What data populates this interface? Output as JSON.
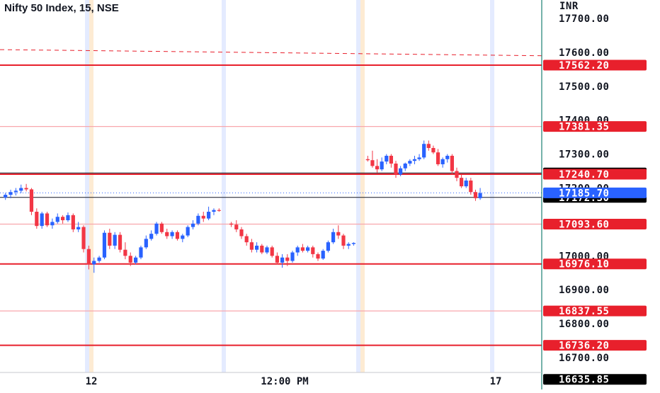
{
  "header": {
    "title": "Nifty 50 Index, 15, NSE"
  },
  "axis": {
    "currency": "INR"
  },
  "colors": {
    "up": "#2962ff",
    "down": "#f23645",
    "level_strong": "#e8202c",
    "level_light": "#f8a7ad",
    "dashed": "#e8202c",
    "session": "#dde6ff",
    "session_alt": "#fde6c8",
    "black_badge": "#000000",
    "blue_badge": "#2962ff",
    "axis_border": "#1a7f72",
    "text": "#131722"
  },
  "chart_data": {
    "type": "candlestick",
    "title": "Nifty 50 Index, 15, NSE",
    "ylabel": "INR",
    "ylim": [
      16610,
      17760
    ],
    "y_ticks": [
      "17700.00",
      "17600.00",
      "17500.00",
      "17400.00",
      "17300.00",
      "17200.00",
      "17000.00",
      "16900.00",
      "16800.00",
      "16700.00"
    ],
    "x_ticks": [
      "12",
      "12:00 PM",
      "17"
    ],
    "levels": [
      {
        "price": 17562.2,
        "label": "17562.20",
        "style": "strong",
        "badge": "red"
      },
      {
        "price": 17381.35,
        "label": "17381.35",
        "style": "light",
        "badge": "red"
      },
      {
        "price": 17244.25,
        "label": "17244.25",
        "style": "black",
        "badge": "black"
      },
      {
        "price": 17240.7,
        "label": "17240.70",
        "style": "strong",
        "badge": "red"
      },
      {
        "price": 17172.3,
        "label": "17172.30",
        "style": "black",
        "badge": "black"
      },
      {
        "price": 17093.6,
        "label": "17093.60",
        "style": "light",
        "badge": "red"
      },
      {
        "price": 16976.1,
        "label": "16976.10",
        "style": "strong",
        "badge": "red"
      },
      {
        "price": 16837.55,
        "label": "16837.55",
        "style": "light",
        "badge": "red"
      },
      {
        "price": 16736.2,
        "label": "16736.20",
        "style": "strong",
        "badge": "red"
      },
      {
        "price": 16635.85,
        "label": "16635.85",
        "style": "none",
        "badge": "black"
      }
    ],
    "last_price": {
      "price": 17185.7,
      "label": "17185.70"
    },
    "dashed_trend": {
      "from": 17608,
      "to": 17590
    },
    "candles": [
      [
        17172,
        17185,
        17165,
        17180
      ],
      [
        17180,
        17195,
        17170,
        17188
      ],
      [
        17188,
        17200,
        17178,
        17192
      ],
      [
        17192,
        17210,
        17185,
        17200
      ],
      [
        17200,
        17212,
        17190,
        17196
      ],
      [
        17196,
        17200,
        17120,
        17130
      ],
      [
        17130,
        17140,
        17080,
        17088
      ],
      [
        17088,
        17130,
        17080,
        17125
      ],
      [
        17125,
        17130,
        17085,
        17090
      ],
      [
        17090,
        17110,
        17080,
        17100
      ],
      [
        17100,
        17125,
        17095,
        17115
      ],
      [
        17115,
        17120,
        17095,
        17105
      ],
      [
        17105,
        17128,
        17100,
        17120
      ],
      [
        17120,
        17125,
        17070,
        17078
      ],
      [
        17078,
        17100,
        17070,
        17085
      ],
      [
        17085,
        17090,
        17010,
        17020
      ],
      [
        17020,
        17030,
        16960,
        16975
      ],
      [
        16975,
        16995,
        16950,
        16985
      ],
      [
        16985,
        17000,
        16980,
        16995
      ],
      [
        16995,
        17075,
        16990,
        17068
      ],
      [
        17068,
        17080,
        17020,
        17030
      ],
      [
        17030,
        17070,
        17020,
        17062
      ],
      [
        17062,
        17070,
        17010,
        17018
      ],
      [
        17018,
        17040,
        16990,
        17000
      ],
      [
        17000,
        17010,
        16970,
        16980
      ],
      [
        16980,
        17000,
        16975,
        16995
      ],
      [
        16995,
        17030,
        16990,
        17025
      ],
      [
        17025,
        17060,
        17020,
        17050
      ],
      [
        17050,
        17075,
        17045,
        17065
      ],
      [
        17065,
        17100,
        17060,
        17095
      ],
      [
        17095,
        17100,
        17065,
        17070
      ],
      [
        17070,
        17080,
        17050,
        17058
      ],
      [
        17058,
        17075,
        17050,
        17070
      ],
      [
        17070,
        17075,
        17045,
        17050
      ],
      [
        17050,
        17065,
        17040,
        17060
      ],
      [
        17060,
        17090,
        17055,
        17085
      ],
      [
        17085,
        17105,
        17078,
        17095
      ],
      [
        17095,
        17125,
        17090,
        17118
      ],
      [
        17118,
        17130,
        17100,
        17110
      ],
      [
        17110,
        17145,
        17105,
        17130
      ],
      [
        17130,
        17140,
        17120,
        17135
      ],
      [
        17135,
        17140,
        17130,
        17133
      ],
      [
        17095,
        17100,
        17085,
        17092
      ],
      [
        17092,
        17105,
        17070,
        17078
      ],
      [
        17078,
        17085,
        17050,
        17058
      ],
      [
        17058,
        17065,
        17030,
        17040
      ],
      [
        17040,
        17050,
        17010,
        17018
      ],
      [
        17018,
        17040,
        17010,
        17030
      ],
      [
        17030,
        17035,
        17005,
        17010
      ],
      [
        17010,
        17030,
        17005,
        17025
      ],
      [
        17025,
        17030,
        16995,
        17000
      ],
      [
        17000,
        17010,
        16975,
        16980
      ],
      [
        16980,
        17005,
        16965,
        16995
      ],
      [
        16995,
        17005,
        16970,
        16985
      ],
      [
        16985,
        17015,
        16980,
        17010
      ],
      [
        17010,
        17030,
        17000,
        17025
      ],
      [
        17025,
        17035,
        17010,
        17015
      ],
      [
        17015,
        17030,
        17010,
        17025
      ],
      [
        17025,
        17030,
        16995,
        17005
      ],
      [
        17005,
        17010,
        16985,
        16992
      ],
      [
        16992,
        17020,
        16988,
        17015
      ],
      [
        17015,
        17045,
        17010,
        17040
      ],
      [
        17040,
        17080,
        17035,
        17070
      ],
      [
        17070,
        17090,
        17050,
        17060
      ],
      [
        17060,
        17065,
        17020,
        17030
      ],
      [
        17030,
        17040,
        17020,
        17035
      ],
      [
        17035,
        17040,
        17030,
        17038
      ],
      [
        17285,
        17295,
        17278,
        17282
      ],
      [
        17282,
        17310,
        17260,
        17265
      ],
      [
        17265,
        17285,
        17245,
        17255
      ],
      [
        17255,
        17290,
        17250,
        17278
      ],
      [
        17278,
        17300,
        17270,
        17295
      ],
      [
        17295,
        17300,
        17260,
        17272
      ],
      [
        17272,
        17280,
        17230,
        17240
      ],
      [
        17240,
        17265,
        17235,
        17258
      ],
      [
        17258,
        17275,
        17250,
        17272
      ],
      [
        17272,
        17285,
        17265,
        17280
      ],
      [
        17280,
        17295,
        17270,
        17285
      ],
      [
        17285,
        17300,
        17280,
        17290
      ],
      [
        17290,
        17340,
        17285,
        17330
      ],
      [
        17330,
        17340,
        17310,
        17318
      ],
      [
        17318,
        17325,
        17300,
        17305
      ],
      [
        17305,
        17315,
        17265,
        17270
      ],
      [
        17270,
        17290,
        17260,
        17285
      ],
      [
        17285,
        17300,
        17275,
        17295
      ],
      [
        17295,
        17300,
        17240,
        17250
      ],
      [
        17250,
        17260,
        17220,
        17230
      ],
      [
        17230,
        17240,
        17200,
        17205
      ],
      [
        17205,
        17230,
        17200,
        17222
      ],
      [
        17222,
        17230,
        17180,
        17188
      ],
      [
        17188,
        17195,
        17162,
        17170
      ],
      [
        17170,
        17200,
        17165,
        17185
      ]
    ]
  }
}
